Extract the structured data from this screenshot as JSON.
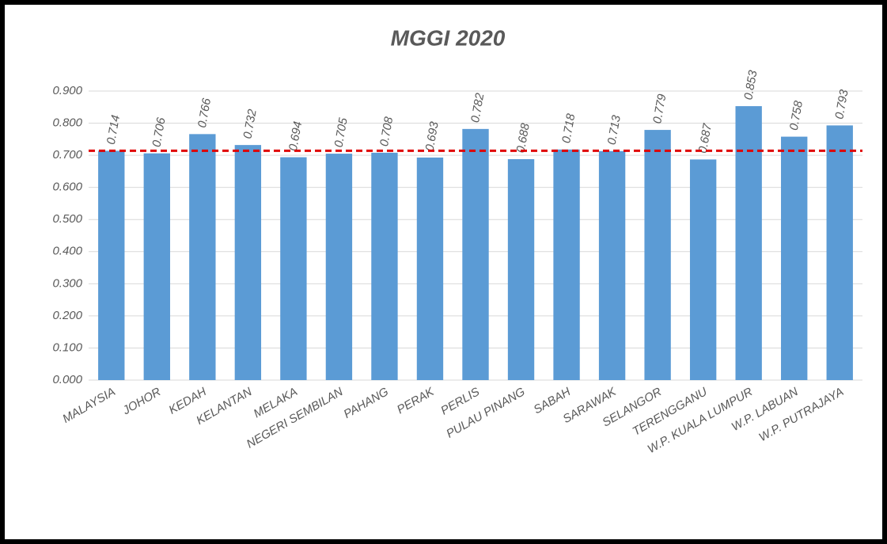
{
  "chart_data": {
    "type": "bar",
    "title": "MGGI 2020",
    "categories": [
      "MALAYSIA",
      "JOHOR",
      "KEDAH",
      "KELANTAN",
      "MELAKA",
      "NEGERI SEMBILAN",
      "PAHANG",
      "PERAK",
      "PERLIS",
      "PULAU PINANG",
      "SABAH",
      "SARAWAK",
      "SELANGOR",
      "TERENGGANU",
      "W.P. KUALA LUMPUR",
      "W.P. LABUAN",
      "W.P. PUTRAJAYA"
    ],
    "values": [
      0.714,
      0.706,
      0.766,
      0.732,
      0.694,
      0.705,
      0.708,
      0.693,
      0.782,
      0.688,
      0.718,
      0.713,
      0.779,
      0.687,
      0.853,
      0.758,
      0.793
    ],
    "color": "#5b9bd5",
    "reference_color": "#e00000",
    "ylim": [
      0,
      0.9
    ],
    "yticks": [
      {
        "value": 0,
        "label": "0.000"
      },
      {
        "value": 0.1,
        "label": "0.100"
      },
      {
        "value": 0.2,
        "label": "0.200"
      },
      {
        "value": 0.3,
        "label": "0.300"
      },
      {
        "value": 0.4,
        "label": "0.400"
      },
      {
        "value": 0.5,
        "label": "0.500"
      },
      {
        "value": 0.6,
        "label": "0.600"
      },
      {
        "value": 0.7,
        "label": "0.700"
      },
      {
        "value": 0.8,
        "label": "0.800"
      },
      {
        "value": 0.9,
        "label": "0.900"
      }
    ],
    "grid": true
  }
}
